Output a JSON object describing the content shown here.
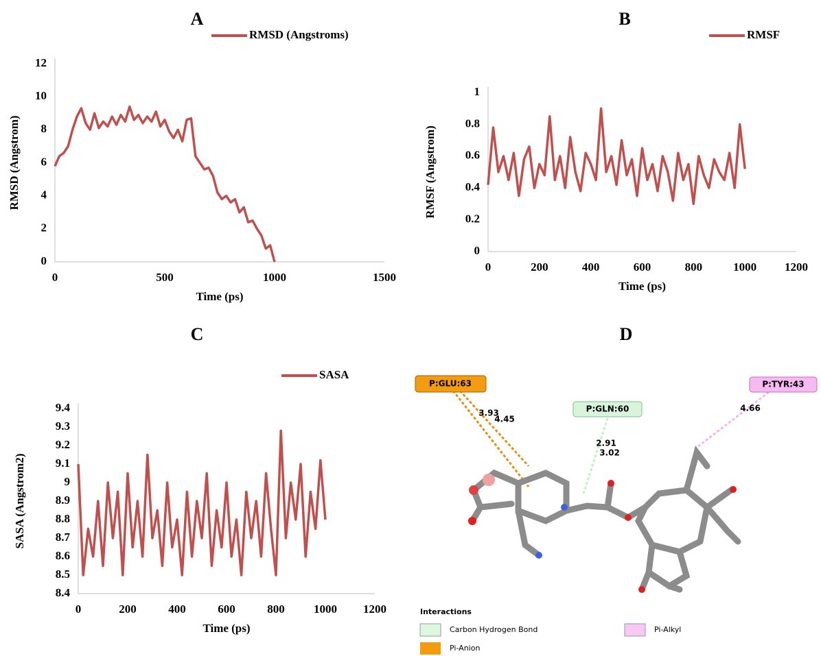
{
  "chart_data": [
    {
      "type": "line",
      "title": "A",
      "x_label": "Time (ps)",
      "y_label": "RMSD (Angstrom)",
      "x": [
        0,
        20,
        40,
        60,
        80,
        100,
        120,
        140,
        160,
        180,
        200,
        220,
        240,
        260,
        280,
        300,
        320,
        340,
        360,
        380,
        400,
        420,
        440,
        460,
        480,
        500,
        520,
        540,
        560,
        580,
        600,
        620,
        640,
        660,
        680,
        700,
        720,
        740,
        760,
        780,
        800,
        820,
        840,
        860,
        880,
        900,
        920,
        940,
        960,
        980,
        1000
      ],
      "series": [
        {
          "name": "RMSD (Angstroms)",
          "color": "#c0504d",
          "values": [
            5.8,
            6.4,
            6.6,
            7.0,
            8.0,
            8.8,
            9.3,
            8.4,
            8.0,
            9.0,
            8.1,
            8.5,
            8.2,
            8.8,
            8.3,
            8.9,
            8.5,
            9.4,
            8.6,
            8.9,
            8.4,
            8.8,
            8.5,
            9.1,
            8.2,
            8.6,
            7.9,
            7.5,
            8.0,
            7.3,
            8.6,
            8.7,
            6.4,
            6.0,
            5.6,
            5.7,
            5.2,
            4.2,
            3.8,
            4.0,
            3.6,
            3.8,
            3.0,
            3.3,
            2.4,
            2.5,
            2.0,
            1.6,
            0.8,
            1.0,
            0
          ]
        }
      ],
      "xlim": [
        0,
        1500
      ],
      "xticks": [
        0,
        500,
        1000,
        1500
      ],
      "ylim": [
        0,
        12
      ],
      "yticks": [
        0,
        2,
        4,
        6,
        8,
        10,
        12
      ]
    },
    {
      "type": "line",
      "title": "B",
      "x_label": "Time (ps)",
      "y_label": "RMSF (Angstrom)",
      "x": [
        0,
        20,
        40,
        60,
        80,
        100,
        120,
        140,
        160,
        180,
        200,
        220,
        240,
        260,
        280,
        300,
        320,
        340,
        360,
        380,
        400,
        420,
        440,
        460,
        480,
        500,
        520,
        540,
        560,
        580,
        600,
        620,
        640,
        660,
        680,
        700,
        720,
        740,
        760,
        780,
        800,
        820,
        840,
        860,
        880,
        900,
        920,
        940,
        960,
        980,
        1000
      ],
      "series": [
        {
          "name": "RMSF",
          "color": "#c0504d",
          "values": [
            0.42,
            0.78,
            0.5,
            0.6,
            0.45,
            0.62,
            0.35,
            0.58,
            0.66,
            0.4,
            0.55,
            0.48,
            0.85,
            0.45,
            0.6,
            0.4,
            0.72,
            0.5,
            0.38,
            0.62,
            0.55,
            0.45,
            0.9,
            0.5,
            0.6,
            0.42,
            0.7,
            0.48,
            0.58,
            0.35,
            0.65,
            0.45,
            0.55,
            0.38,
            0.6,
            0.5,
            0.32,
            0.62,
            0.45,
            0.55,
            0.3,
            0.6,
            0.48,
            0.4,
            0.58,
            0.5,
            0.45,
            0.62,
            0.4,
            0.8,
            0.52
          ]
        }
      ],
      "xlim": [
        0,
        1200
      ],
      "xticks": [
        0,
        200,
        400,
        600,
        800,
        1000,
        1200
      ],
      "ylim": [
        0,
        1
      ],
      "yticks": [
        0,
        0.2,
        0.4,
        0.6,
        0.8,
        1
      ]
    },
    {
      "type": "line",
      "title": "C",
      "x_label": "Time (ps)",
      "y_label": "SASA (Angstrom2)",
      "x": [
        0,
        20,
        40,
        60,
        80,
        100,
        120,
        140,
        160,
        180,
        200,
        220,
        240,
        260,
        280,
        300,
        320,
        340,
        360,
        380,
        400,
        420,
        440,
        460,
        480,
        500,
        520,
        540,
        560,
        580,
        600,
        620,
        640,
        660,
        680,
        700,
        720,
        740,
        760,
        780,
        800,
        820,
        840,
        860,
        880,
        900,
        920,
        940,
        960,
        980,
        1000
      ],
      "series": [
        {
          "name": "SASA",
          "color": "#c0504d",
          "values": [
            9.1,
            8.5,
            8.75,
            8.6,
            8.9,
            8.55,
            9.0,
            8.7,
            8.95,
            8.5,
            9.05,
            8.65,
            8.9,
            8.6,
            9.15,
            8.7,
            8.85,
            8.55,
            9.0,
            8.65,
            8.8,
            8.5,
            8.95,
            8.6,
            8.9,
            8.7,
            9.05,
            8.55,
            8.85,
            8.65,
            9.0,
            8.6,
            8.8,
            8.5,
            8.95,
            8.7,
            8.9,
            8.6,
            9.05,
            8.75,
            8.5,
            9.28,
            8.7,
            9.0,
            8.8,
            9.1,
            8.6,
            8.95,
            8.75,
            9.12,
            8.8
          ]
        }
      ],
      "xlim": [
        0,
        1200
      ],
      "xticks": [
        0,
        200,
        400,
        600,
        800,
        1000,
        1200
      ],
      "ylim": [
        8.4,
        9.4
      ],
      "yticks": [
        8.4,
        8.5,
        8.6,
        8.7,
        8.8,
        8.9,
        9,
        9.1,
        9.2,
        9.3,
        9.4
      ]
    }
  ],
  "diagram": {
    "title": "D",
    "residues": [
      "P:GLU:63",
      "P:GLN:60",
      "P:TYR:43"
    ],
    "distances": [
      "3.93",
      "4.45",
      "2.91",
      "3.02",
      "4.66"
    ],
    "legend": {
      "title": "Interactions",
      "items": [
        "Carbon Hydrogen Bond",
        "Pi-Alkyl",
        "Pi-Anion"
      ]
    }
  }
}
